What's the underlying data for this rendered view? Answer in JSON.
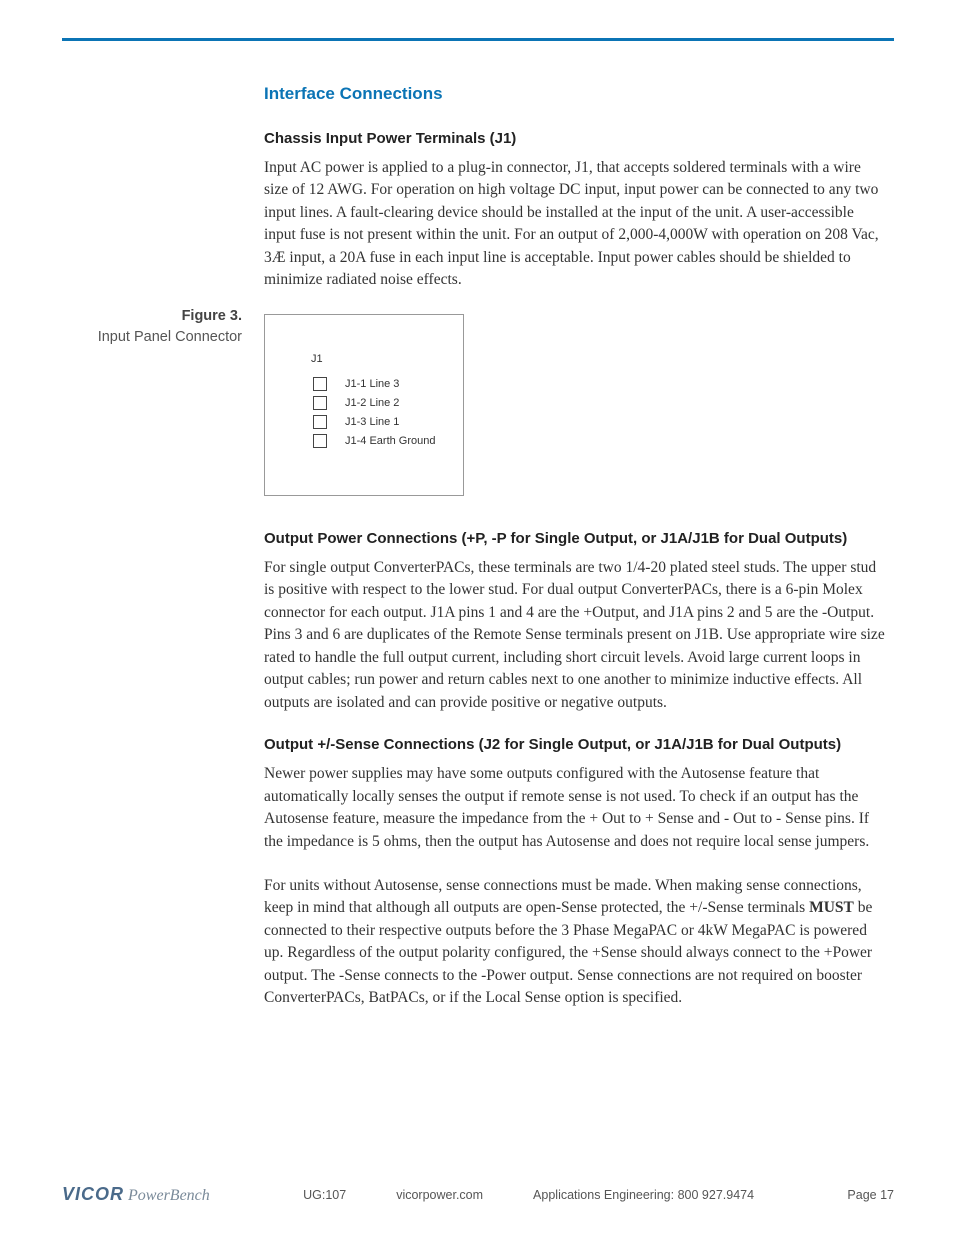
{
  "section_title": "Interface Connections",
  "sub1_heading": "Chassis Input Power Terminals (J1)",
  "sub1_body": "Input AC power is applied to a plug-in connector, J1, that accepts soldered terminals with a wire size of 12 AWG. For operation on high voltage DC input, input power can be connected to any two input lines. A fault-clearing device should be installed at the input of the unit. A user-accessible input fuse is not  present within the unit. For an output of 2,000-4,000W with operation on 208 Vac, 3Æ input, a 20A fuse in each input line is acceptable. Input power cables should be shielded to minimize radiated noise effects.",
  "figure_label": "Figure 3.",
  "figure_caption": "Input Panel Connector",
  "j1": {
    "title": "J1",
    "pins": [
      "J1-1 Line 3",
      "J1-2 Line 2",
      "J1-3 Line 1",
      "J1-4 Earth Ground"
    ]
  },
  "sub2_heading": "Output Power Connections (+P, -P for Single Output, or J1A/J1B for Dual Outputs)",
  "sub2_body": "For single output ConverterPACs, these terminals are two 1/4-20 plated steel studs. The upper stud is positive with respect to the lower stud. For dual output ConverterPACs, there is a 6-pin Molex connector for each output. J1A pins 1 and 4 are the +Output, and J1A pins 2 and 5 are the -Output. Pins 3 and 6 are duplicates of the Remote Sense terminals present on J1B. Use appropriate wire size rated to handle the full output current, including short circuit levels. Avoid large current loops in output cables; run power and return cables next to one another to minimize inductive effects. All outputs are isolated and can provide positive or negative outputs.",
  "sub3_heading": "Output +/-Sense Connections (J2 for Single Output, or J1A/J1B for Dual Outputs)",
  "sub3_body1": "Newer power supplies may have some outputs configured with the Autosense feature that automatically locally senses the output if remote sense is not used.  To check if an output has the Autosense feature, measure the impedance from the + Out to + Sense and - Out to - Sense pins.  If the impedance is 5 ohms, then the output has Autosense and does not require local sense jumpers.",
  "sub3_body2_a": "For units without Autosense, sense connections must be made.  When making sense connections, keep in mind that although all outputs are open-Sense protected, the +/-Sense terminals ",
  "sub3_body2_must": "MUST",
  "sub3_body2_b": " be connected to their respective outputs before the 3 Phase MegaPAC or 4kW MegaPAC is powered up. Regardless of the output polarity configured, the +Sense should always connect to the +Power output. The -Sense connects to the -Power output. Sense connections are not required on booster ConverterPACs, BatPACs, or if the Local Sense option is specified.",
  "footer": {
    "brand_vicor": "VICOR",
    "brand_pb": "PowerBench",
    "ug": "UG:107",
    "site": "vicorpower.com",
    "phone": "Applications Engineering: 800 927.9474",
    "page": "Page 17"
  },
  "colors": {
    "accent": "#0b74b5",
    "text": "#333333",
    "muted": "#555555"
  }
}
